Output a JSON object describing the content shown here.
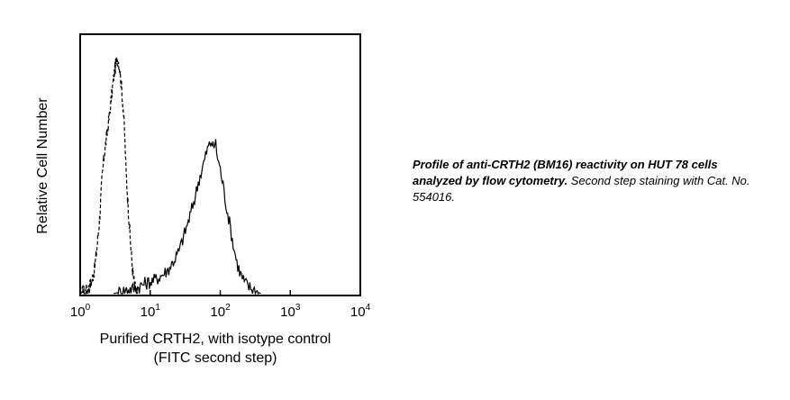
{
  "chart_data": {
    "type": "histogram",
    "x_scale": "log",
    "xlim": [
      1,
      10000
    ],
    "ylim": [
      0,
      1
    ],
    "x_ticks": [
      {
        "base": "10",
        "exp": "0",
        "value": 1
      },
      {
        "base": "10",
        "exp": "1",
        "value": 10
      },
      {
        "base": "10",
        "exp": "2",
        "value": 100
      },
      {
        "base": "10",
        "exp": "3",
        "value": 1000
      },
      {
        "base": "10",
        "exp": "4",
        "value": 10000
      }
    ],
    "xlabel_line1": "Purified CRTH2, with isotype control",
    "xlabel_line2": "(FITC second step)",
    "ylabel": "Relative Cell Number",
    "grid": false,
    "series": [
      {
        "style": "dashed",
        "x": [
          1,
          1.15,
          1.3,
          1.45,
          1.6,
          1.75,
          1.9,
          2.05,
          2.2,
          2.35,
          2.5,
          2.65,
          2.8,
          2.95,
          3.1,
          3.25,
          3.4,
          3.55,
          3.7,
          3.9,
          4.1,
          4.3,
          4.5,
          4.8,
          5.2,
          5.6,
          6.0,
          6.6
        ],
        "y": [
          0.0,
          0.01,
          0.02,
          0.05,
          0.1,
          0.2,
          0.32,
          0.48,
          0.58,
          0.64,
          0.7,
          0.76,
          0.82,
          0.88,
          0.93,
          0.96,
          0.98,
          0.97,
          0.93,
          0.86,
          0.78,
          0.68,
          0.52,
          0.38,
          0.22,
          0.1,
          0.03,
          0.0
        ]
      },
      {
        "style": "solid",
        "x": [
          3,
          4,
          5,
          6,
          7,
          8,
          10,
          12,
          15,
          18,
          22,
          26,
          30,
          35,
          40,
          45,
          50,
          55,
          60,
          65,
          70,
          75,
          80,
          85,
          90,
          95,
          100,
          110,
          120,
          135,
          150,
          170,
          190,
          220,
          250,
          290,
          330,
          380
        ],
        "y": [
          0.0,
          0.01,
          0.02,
          0.02,
          0.03,
          0.04,
          0.05,
          0.06,
          0.08,
          0.1,
          0.14,
          0.18,
          0.24,
          0.3,
          0.36,
          0.42,
          0.48,
          0.52,
          0.56,
          0.6,
          0.62,
          0.64,
          0.6,
          0.64,
          0.58,
          0.55,
          0.52,
          0.45,
          0.38,
          0.3,
          0.22,
          0.14,
          0.09,
          0.05,
          0.03,
          0.02,
          0.01,
          0.0
        ]
      }
    ]
  },
  "caption": {
    "bold": "Profile of anti-CRTH2 (BM16) reactivity on HUT 78 cells analyzed by flow cytometry.",
    "normal": " Second step staining with Cat. No. 554016."
  }
}
